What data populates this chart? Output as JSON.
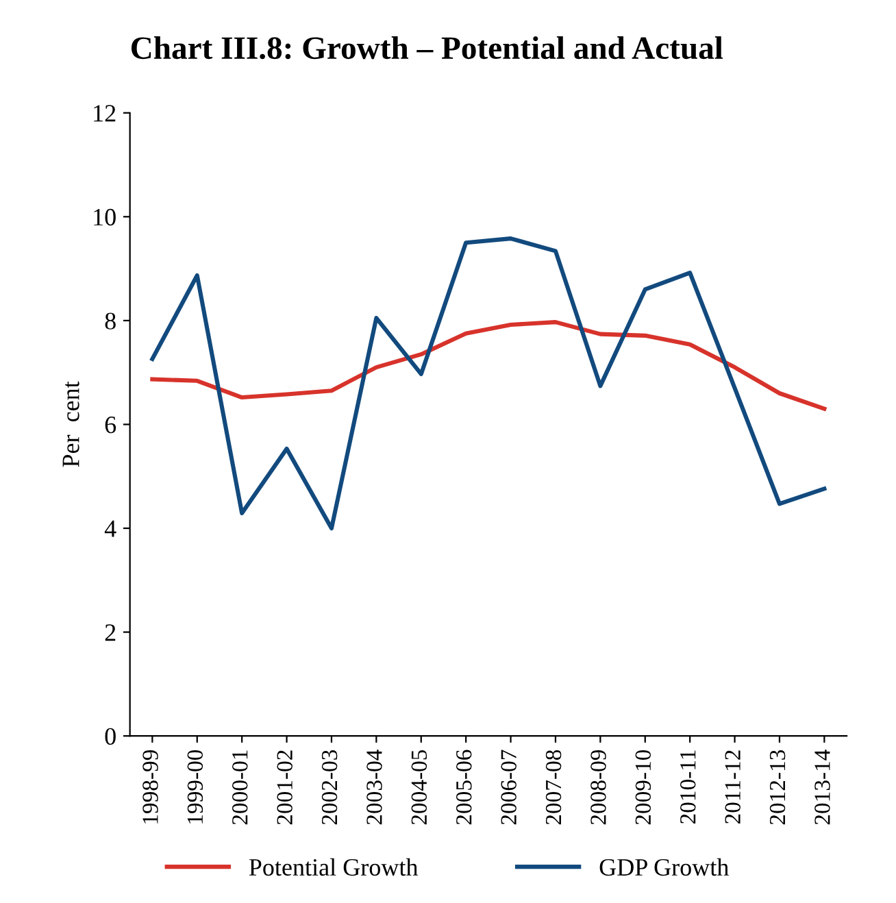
{
  "chart_data": {
    "type": "line",
    "title": "Chart III.8: Growth – Potential and Actual",
    "ylabel": "Per  cent",
    "categories": [
      "1998-99",
      "1999-00",
      "2000-01",
      "2001-02",
      "2002-03",
      "2003-04",
      "2004-05",
      "2005-06",
      "2006-07",
      "2007-08",
      "2008-09",
      "2009-10",
      "2010-11",
      "2011-12",
      "2012-13",
      "2013-14"
    ],
    "series": [
      {
        "name": "Potential Growth",
        "color": "#d7332b",
        "values": [
          6.87,
          6.84,
          6.52,
          6.58,
          6.65,
          7.1,
          7.35,
          7.75,
          7.92,
          7.97,
          7.74,
          7.71,
          7.54,
          7.1,
          6.6,
          6.3
        ]
      },
      {
        "name": "GDP Growth",
        "color": "#124a7e",
        "values": [
          7.26,
          8.87,
          4.29,
          5.53,
          4.0,
          8.05,
          6.97,
          9.5,
          9.58,
          9.34,
          6.74,
          8.6,
          8.92,
          6.7,
          4.47,
          4.76
        ]
      }
    ],
    "ylim": [
      0,
      12
    ],
    "yticks": [
      0,
      2,
      4,
      6,
      8,
      10,
      12
    ],
    "grid": false,
    "legend": "bottom",
    "marker": "none",
    "line_style": "solid"
  }
}
